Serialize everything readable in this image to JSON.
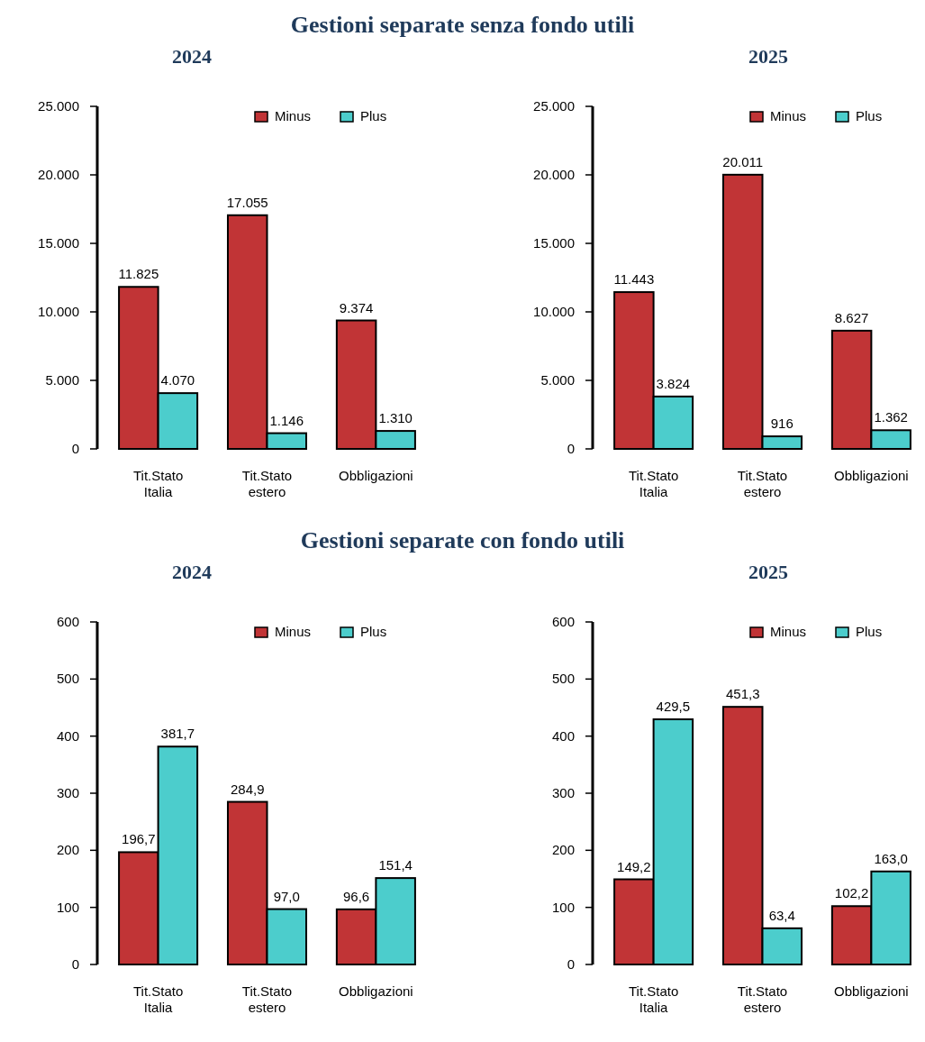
{
  "chart_data": [
    {
      "type": "bar",
      "title": "Gestioni separate senza fondo utili",
      "subtitle": "2024",
      "categories": [
        "Tit.Stato Italia",
        "Tit.Stato estero",
        "Obbligazioni"
      ],
      "series": [
        {
          "name": "Minus",
          "color": "#c13436",
          "values": [
            11825,
            17055,
            9374
          ],
          "value_labels": [
            "11.825",
            "17.055",
            "9.374"
          ]
        },
        {
          "name": "Plus",
          "color": "#4ccdcc",
          "values": [
            4070,
            1146,
            1310
          ],
          "value_labels": [
            "4.070",
            "1.146",
            "1.310"
          ]
        }
      ],
      "ylim": [
        0,
        25000
      ],
      "yticks": [
        0,
        {
          "value": 5000,
          "label": "5.000"
        },
        {
          "value": 10000,
          "label": "10.000"
        },
        {
          "value": 15000,
          "label": "15.000"
        },
        {
          "value": 20000,
          "label": "20.000"
        },
        {
          "value": 25000,
          "label": "25.000"
        }
      ],
      "grid": false,
      "legend": "top right"
    },
    {
      "type": "bar",
      "subtitle": "2025",
      "categories": [
        "Tit.Stato Italia",
        "Tit.Stato estero",
        "Obbligazioni"
      ],
      "series": [
        {
          "name": "Minus",
          "color": "#c13436",
          "values": [
            11443,
            20011,
            8627
          ],
          "value_labels": [
            "11.443",
            "20.011",
            "8.627"
          ]
        },
        {
          "name": "Plus",
          "color": "#4ccdcc",
          "values": [
            3824,
            916,
            1362
          ],
          "value_labels": [
            "3.824",
            "916",
            "1.362"
          ]
        }
      ],
      "ylim": [
        0,
        25000
      ],
      "yticks": [
        0,
        {
          "value": 5000,
          "label": "5.000"
        },
        {
          "value": 10000,
          "label": "10.000"
        },
        {
          "value": 15000,
          "label": "15.000"
        },
        {
          "value": 20000,
          "label": "20.000"
        },
        {
          "value": 25000,
          "label": "25.000"
        }
      ],
      "grid": false,
      "legend": "top right"
    },
    {
      "type": "bar",
      "title": "Gestioni separate con fondo utili",
      "subtitle": "2024",
      "categories": [
        "Tit.Stato Italia",
        "Tit.Stato estero",
        "Obbligazioni"
      ],
      "series": [
        {
          "name": "Minus",
          "color": "#c13436",
          "values": [
            196.7,
            284.9,
            96.6
          ],
          "value_labels": [
            "196,7",
            "284,9",
            "96,6"
          ]
        },
        {
          "name": "Plus",
          "color": "#4ccdcc",
          "values": [
            381.7,
            97.0,
            151.4
          ],
          "value_labels": [
            "381,7",
            "97,0",
            "151,4"
          ]
        }
      ],
      "ylim": [
        0,
        600
      ],
      "yticks": [
        0,
        100,
        200,
        300,
        400,
        500,
        600
      ],
      "grid": false,
      "legend": "top right"
    },
    {
      "type": "bar",
      "subtitle": "2025",
      "categories": [
        "Tit.Stato Italia",
        "Tit.Stato estero",
        "Obbligazioni"
      ],
      "series": [
        {
          "name": "Minus",
          "color": "#c13436",
          "values": [
            149.2,
            451.3,
            102.2
          ],
          "value_labels": [
            "149,2",
            "451,3",
            "102,2"
          ]
        },
        {
          "name": "Plus",
          "color": "#4ccdcc",
          "values": [
            429.5,
            63.4,
            163.0
          ],
          "value_labels": [
            "429,5",
            "63,4",
            "163,0"
          ]
        }
      ],
      "ylim": [
        0,
        600
      ],
      "yticks": [
        0,
        100,
        200,
        300,
        400,
        500,
        600
      ],
      "grid": false,
      "legend": "top right"
    }
  ]
}
